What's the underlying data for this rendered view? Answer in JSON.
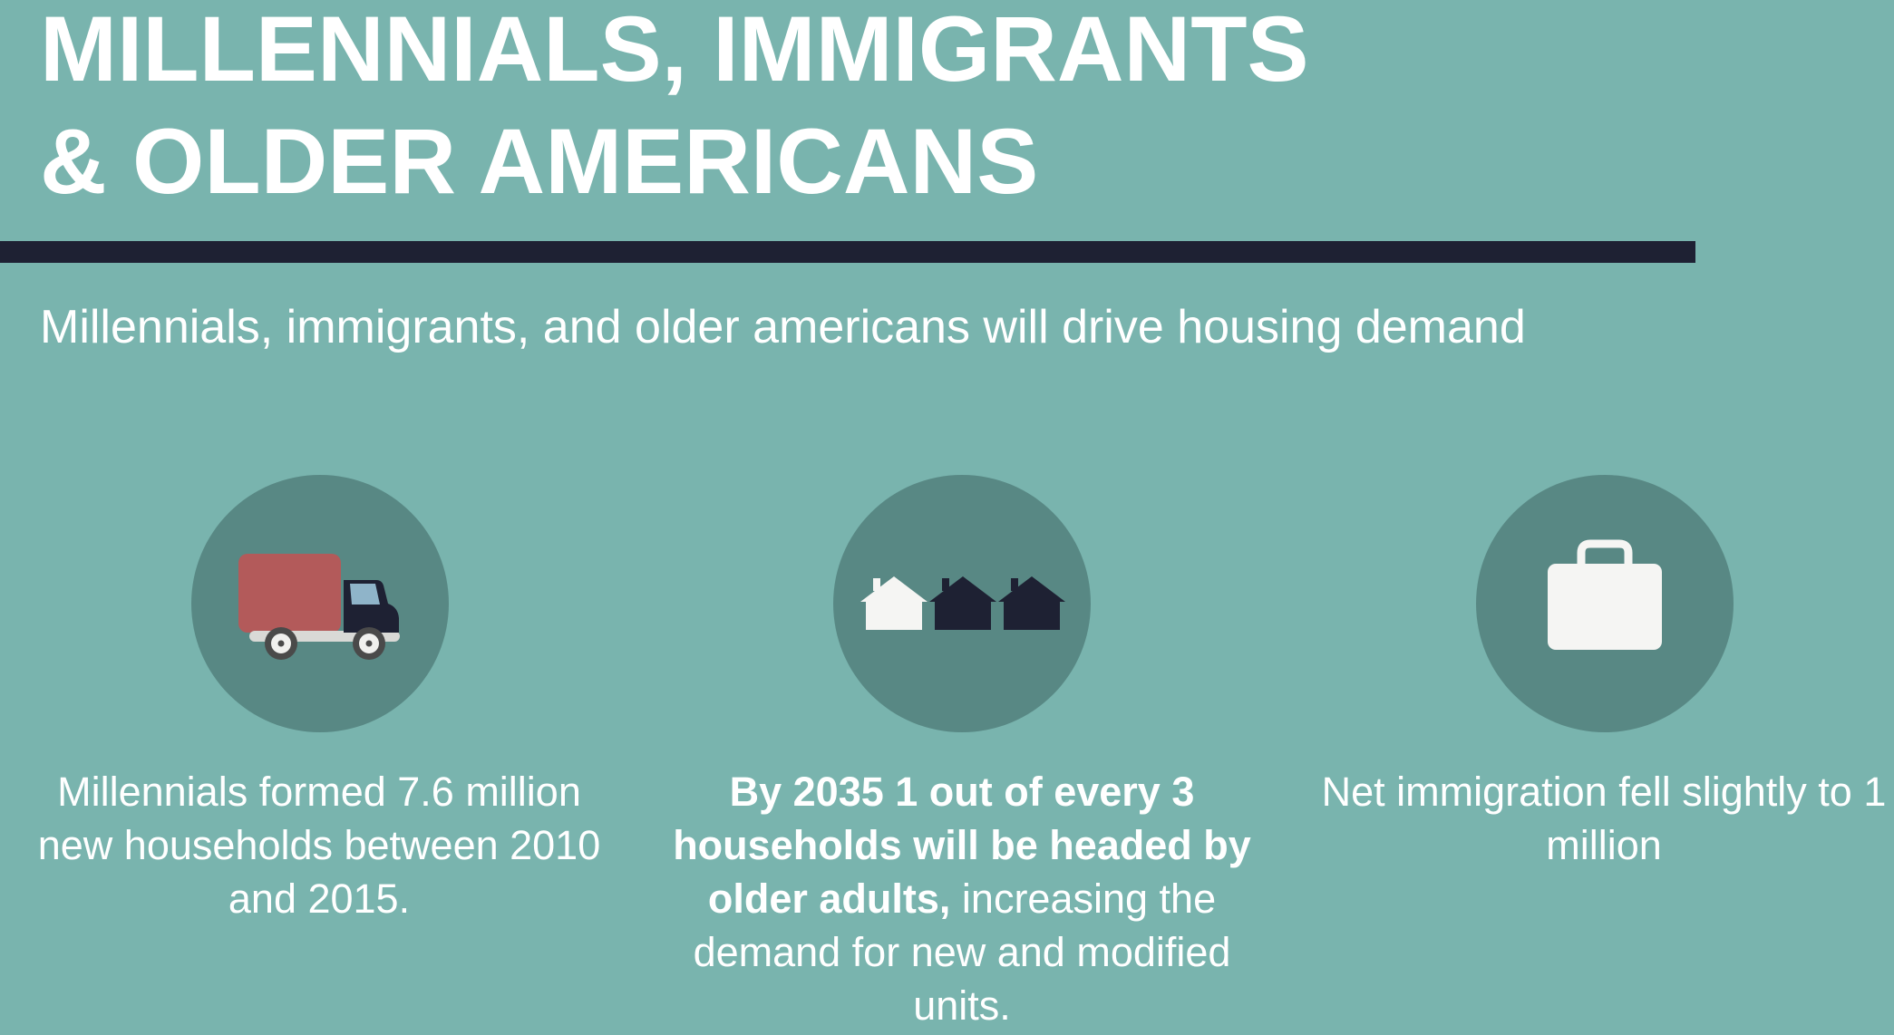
{
  "header": {
    "title_line1": "MILLENNIALS, IMMIGRANTS",
    "title_line2": "& OLDER AMERICANS",
    "subtitle": "Millennials, immigrants, and older americans will drive housing demand"
  },
  "colors": {
    "background": "#79b4ae",
    "divider": "#1e2133",
    "circle": "#588884",
    "truck_cargo": "#b35a5a",
    "truck_cab": "#1e2133",
    "house_light": "#f5f5f3",
    "house_dark": "#1e2133",
    "briefcase": "#f5f5f3"
  },
  "stats": [
    {
      "icon": "moving-truck-icon",
      "text": "Millennials formed 7.6 million new households between 2010 and 2015."
    },
    {
      "icon": "houses-icon",
      "bold_text": "By 2035 1 out of every 3 households  will be headed by older adults,",
      "text": " increasing the demand for new and modified units."
    },
    {
      "icon": "briefcase-icon",
      "text": "Net immigration fell slightly to 1 million"
    }
  ]
}
